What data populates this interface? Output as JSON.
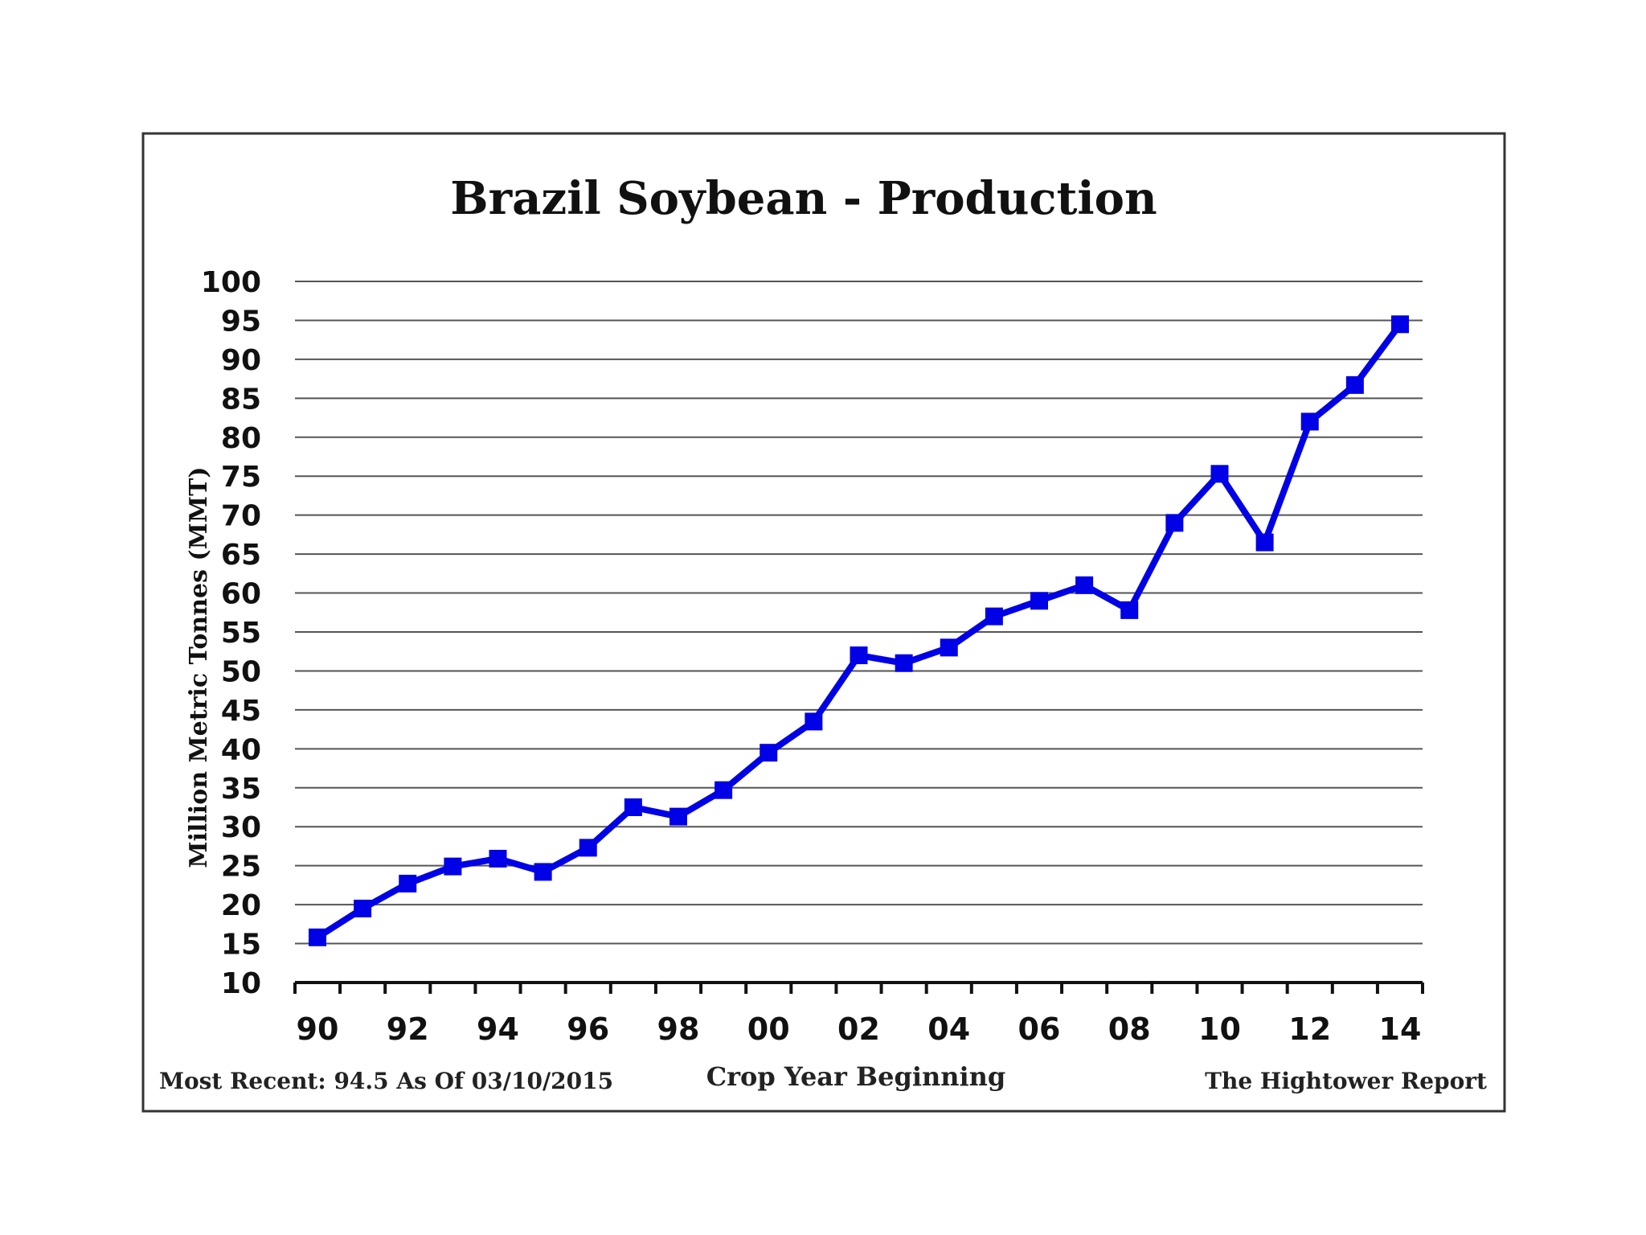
{
  "chart_data": {
    "type": "line",
    "title": "Brazil Soybean - Production",
    "xlabel": "Crop Year Beginning",
    "ylabel": "Million Metric Tonnes (MMT)",
    "ylim": [
      10,
      100
    ],
    "ytick_step": 5,
    "x_tick_labels": [
      "90",
      "92",
      "94",
      "96",
      "98",
      "00",
      "02",
      "04",
      "06",
      "08",
      "10",
      "12",
      "14"
    ],
    "x": [
      "90",
      "91",
      "92",
      "93",
      "94",
      "95",
      "96",
      "97",
      "98",
      "99",
      "00",
      "01",
      "02",
      "03",
      "04",
      "05",
      "06",
      "07",
      "08",
      "09",
      "10",
      "11",
      "12",
      "13",
      "14"
    ],
    "series": [
      {
        "name": "",
        "color": "#0000e6",
        "values": [
          15.8,
          19.5,
          22.7,
          24.9,
          25.9,
          24.2,
          27.3,
          32.5,
          31.3,
          34.7,
          39.5,
          43.5,
          52.0,
          51.0,
          53.0,
          57.0,
          59.0,
          61.0,
          57.8,
          69.0,
          75.3,
          66.5,
          82.0,
          86.7,
          94.5
        ]
      }
    ],
    "grid": true,
    "legend": "none"
  },
  "footer": {
    "left": "Most Recent: 94.5 As Of 03/10/2015",
    "right": "The Hightower Report"
  }
}
